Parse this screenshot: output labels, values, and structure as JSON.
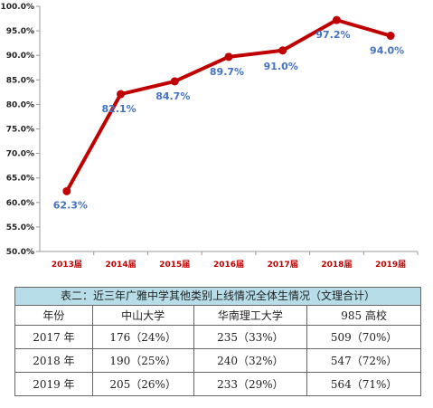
{
  "chart_data": {
    "type": "line",
    "categories": [
      "2013届",
      "2014届",
      "2015届",
      "2016届",
      "2017届",
      "2018届",
      "2019届"
    ],
    "values": [
      62.3,
      82.1,
      84.7,
      89.7,
      91.0,
      97.2,
      94.0
    ],
    "data_labels": [
      "62.3%",
      "82.1%",
      "84.7%",
      "89.7%",
      "91.0%",
      "97.2%",
      "94.0%"
    ],
    "yticks": [
      "50.0%",
      "55.0%",
      "60.0%",
      "65.0%",
      "70.0%",
      "75.0%",
      "80.0%",
      "85.0%",
      "90.0%",
      "95.0%",
      "100.0%"
    ],
    "ylim": [
      50,
      100
    ],
    "grid": false,
    "colors": {
      "line": "#c00000",
      "marker": "#c00000",
      "data_label": "#4472c4",
      "x_tick": "#c00000"
    }
  },
  "table": {
    "caption": "表二：近三年广雅中学其他类别上线情况全体生情况（文理合计）",
    "headers": [
      "年份",
      "中山大学",
      "华南理工大学",
      "985 高校"
    ],
    "rows": [
      [
        "2017 年",
        "176（24%）",
        "235（33%）",
        "509（70%）"
      ],
      [
        "2018 年",
        "190（25%）",
        "240（32%）",
        "547（72%）"
      ],
      [
        "2019 年",
        "205（26%）",
        "233（29%）",
        "564（71%）"
      ]
    ],
    "colors": {
      "caption_bg": "#b7dde8",
      "border": "#666666"
    }
  }
}
